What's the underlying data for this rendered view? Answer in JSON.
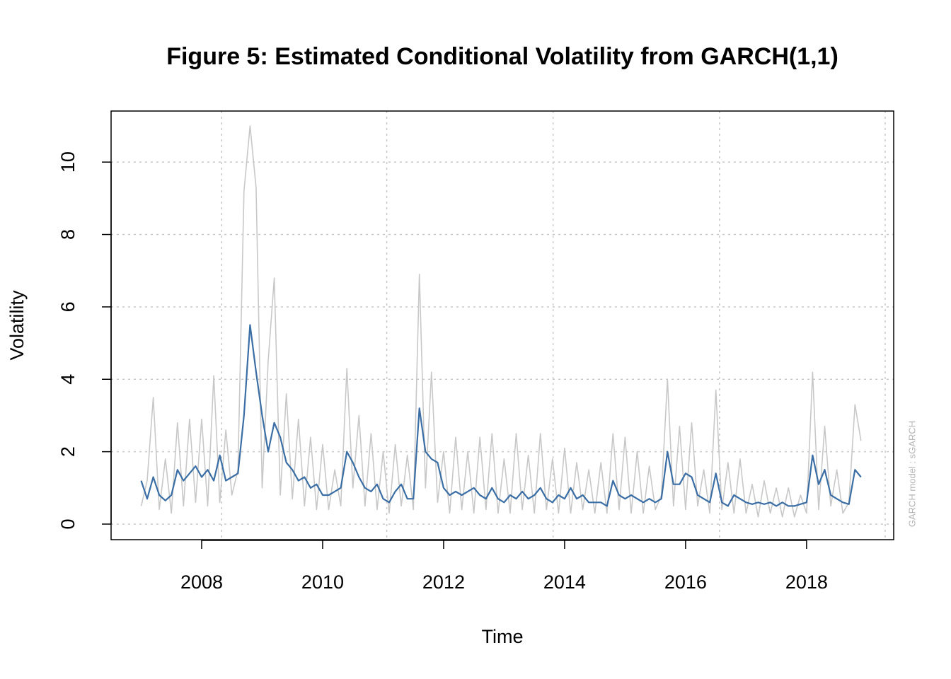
{
  "chart_data": {
    "type": "line",
    "title": "Figure 5: Estimated Conditional Volatility from GARCH(1,1)",
    "x_label": "Time",
    "y_label": "Volatility",
    "annotation": "GARCH model :  sGARCH",
    "x": [
      2007.0,
      2007.1,
      2007.2,
      2007.3,
      2007.4,
      2007.5,
      2007.6,
      2007.7,
      2007.8,
      2007.9,
      2008.0,
      2008.1,
      2008.2,
      2008.3,
      2008.4,
      2008.5,
      2008.6,
      2008.7,
      2008.8,
      2008.9,
      2009.0,
      2009.1,
      2009.2,
      2009.3,
      2009.4,
      2009.5,
      2009.6,
      2009.7,
      2009.8,
      2009.9,
      2010.0,
      2010.1,
      2010.2,
      2010.3,
      2010.4,
      2010.5,
      2010.6,
      2010.7,
      2010.8,
      2010.9,
      2011.0,
      2011.1,
      2011.2,
      2011.3,
      2011.4,
      2011.5,
      2011.6,
      2011.7,
      2011.8,
      2011.9,
      2012.0,
      2012.1,
      2012.2,
      2012.3,
      2012.4,
      2012.5,
      2012.6,
      2012.7,
      2012.8,
      2012.9,
      2013.0,
      2013.1,
      2013.2,
      2013.3,
      2013.4,
      2013.5,
      2013.6,
      2013.7,
      2013.8,
      2013.9,
      2014.0,
      2014.1,
      2014.2,
      2014.3,
      2014.4,
      2014.5,
      2014.6,
      2014.7,
      2014.8,
      2014.9,
      2015.0,
      2015.1,
      2015.2,
      2015.3,
      2015.4,
      2015.5,
      2015.6,
      2015.7,
      2015.8,
      2015.9,
      2016.0,
      2016.1,
      2016.2,
      2016.3,
      2016.4,
      2016.5,
      2016.6,
      2016.7,
      2016.8,
      2016.9,
      2017.0,
      2017.1,
      2017.2,
      2017.3,
      2017.4,
      2017.5,
      2017.6,
      2017.7,
      2017.8,
      2017.9,
      2018.0,
      2018.1,
      2018.2,
      2018.3,
      2018.4,
      2018.5,
      2018.6,
      2018.7,
      2018.8,
      2018.9
    ],
    "series": [
      {
        "color": "#c8c8c8",
        "values": [
          0.5,
          1.2,
          3.5,
          0.4,
          1.8,
          0.3,
          2.8,
          0.5,
          2.9,
          0.6,
          2.9,
          0.5,
          4.1,
          0.6,
          2.6,
          0.8,
          1.5,
          9.2,
          11.0,
          9.3,
          1.0,
          4.5,
          6.8,
          0.8,
          3.6,
          0.7,
          2.9,
          0.5,
          2.4,
          0.4,
          2.2,
          0.4,
          1.5,
          0.5,
          4.3,
          1.0,
          3.0,
          0.5,
          2.5,
          0.4,
          2.0,
          0.3,
          2.2,
          0.5,
          1.9,
          0.4,
          6.9,
          1.0,
          4.2,
          0.6,
          2.0,
          0.3,
          2.4,
          0.4,
          2.0,
          0.3,
          2.4,
          0.4,
          2.5,
          0.3,
          1.8,
          0.3,
          2.5,
          0.4,
          1.9,
          0.3,
          2.5,
          0.4,
          1.8,
          0.3,
          2.1,
          0.3,
          1.7,
          0.4,
          1.5,
          0.3,
          1.7,
          0.3,
          2.5,
          0.4,
          2.4,
          0.3,
          2.0,
          0.3,
          1.6,
          0.4,
          0.8,
          4.0,
          0.5,
          2.7,
          0.4,
          2.8,
          0.5,
          1.5,
          0.3,
          3.7,
          0.4,
          1.7,
          0.3,
          1.8,
          0.3,
          1.1,
          0.2,
          1.2,
          0.3,
          1.0,
          0.2,
          1.0,
          0.2,
          0.8,
          0.3,
          4.2,
          0.4,
          2.7,
          0.5,
          1.5,
          0.3,
          0.6,
          3.3,
          2.3
        ]
      },
      {
        "color": "#3a6ea5",
        "values": [
          1.2,
          0.7,
          1.3,
          0.8,
          0.65,
          0.8,
          1.5,
          1.2,
          1.4,
          1.6,
          1.3,
          1.5,
          1.2,
          1.9,
          1.2,
          1.3,
          1.4,
          3.0,
          5.5,
          4.2,
          3.0,
          2.0,
          2.8,
          2.4,
          1.7,
          1.5,
          1.2,
          1.3,
          1.0,
          1.1,
          0.8,
          0.8,
          0.9,
          1.0,
          2.0,
          1.7,
          1.3,
          1.0,
          0.9,
          1.1,
          0.7,
          0.6,
          0.9,
          1.1,
          0.7,
          0.7,
          3.2,
          2.0,
          1.8,
          1.7,
          1.0,
          0.8,
          0.9,
          0.8,
          0.9,
          1.0,
          0.8,
          0.7,
          1.0,
          0.7,
          0.6,
          0.8,
          0.7,
          0.9,
          0.7,
          0.8,
          1.0,
          0.7,
          0.6,
          0.8,
          0.7,
          1.0,
          0.7,
          0.8,
          0.6,
          0.6,
          0.6,
          0.5,
          1.2,
          0.8,
          0.7,
          0.8,
          0.7,
          0.6,
          0.7,
          0.6,
          0.7,
          2.0,
          1.1,
          1.1,
          1.4,
          1.3,
          0.8,
          0.7,
          0.6,
          1.4,
          0.6,
          0.5,
          0.8,
          0.7,
          0.6,
          0.55,
          0.6,
          0.55,
          0.6,
          0.5,
          0.6,
          0.5,
          0.5,
          0.55,
          0.6,
          1.9,
          1.1,
          1.5,
          0.8,
          0.7,
          0.6,
          0.55,
          1.5,
          1.3
        ]
      }
    ],
    "xlim": [
      2006.503,
      2019.44
    ],
    "xticks": [
      2008,
      2010,
      2012,
      2014,
      2016,
      2018
    ],
    "xgrid": [
      2008.33,
      2011.06,
      2013.81,
      2016.56,
      2019.3
    ],
    "ylim": [
      -0.43,
      11.41
    ],
    "yticks": [
      0,
      2,
      4,
      6,
      8,
      10
    ],
    "grid": true
  }
}
